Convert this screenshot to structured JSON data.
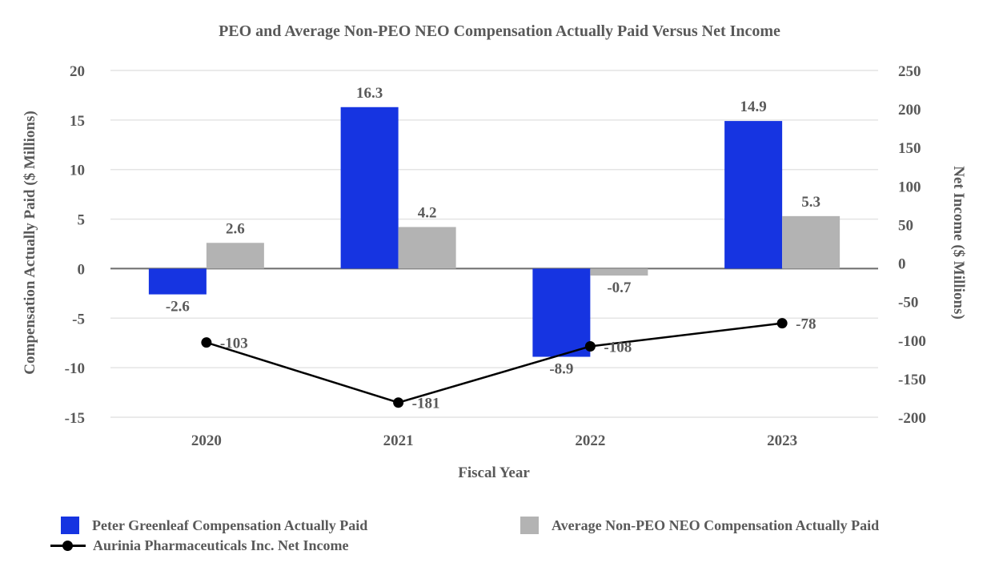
{
  "chart_data": {
    "type": "bar+line combo, dual y-axis",
    "title": "PEO and Average Non-PEO NEO Compensation Actually Paid Versus Net Income",
    "categories": [
      "2020",
      "2021",
      "2022",
      "2023"
    ],
    "xlabel": "Fiscal Year",
    "left_axis": {
      "label": "Compensation Actually Paid ($ Millions)",
      "ticks": [
        20,
        15,
        10,
        5,
        0,
        -5,
        -10,
        -15
      ],
      "max": 20,
      "min": -15
    },
    "right_axis": {
      "label": "Net Income ($ Millions)",
      "ticks": [
        250,
        200,
        150,
        100,
        50,
        0,
        -50,
        -100,
        -150,
        -200
      ],
      "max": 250,
      "min": -200
    },
    "series": [
      {
        "name": "Peter Greenleaf Compensation Actually Paid",
        "type": "bar",
        "axis": "left",
        "color": "#1634e1",
        "values": [
          -2.6,
          16.3,
          -8.9,
          14.9
        ]
      },
      {
        "name": "Average Non-PEO NEO Compensation Actually Paid",
        "type": "bar",
        "axis": "left",
        "color": "#b3b3b3",
        "values": [
          2.6,
          4.2,
          -0.7,
          5.3
        ]
      },
      {
        "name": "Aurinia Pharmaceuticals Inc. Net Income",
        "type": "line",
        "axis": "right",
        "color": "#000000",
        "values": [
          -103,
          -181,
          -108,
          -78
        ]
      }
    ],
    "grid": true,
    "legend_position": "bottom"
  },
  "colors": {
    "text": "#595959",
    "gridline": "#e4e4e4",
    "zero_line": "#6b6b6b",
    "background": "#ffffff"
  }
}
